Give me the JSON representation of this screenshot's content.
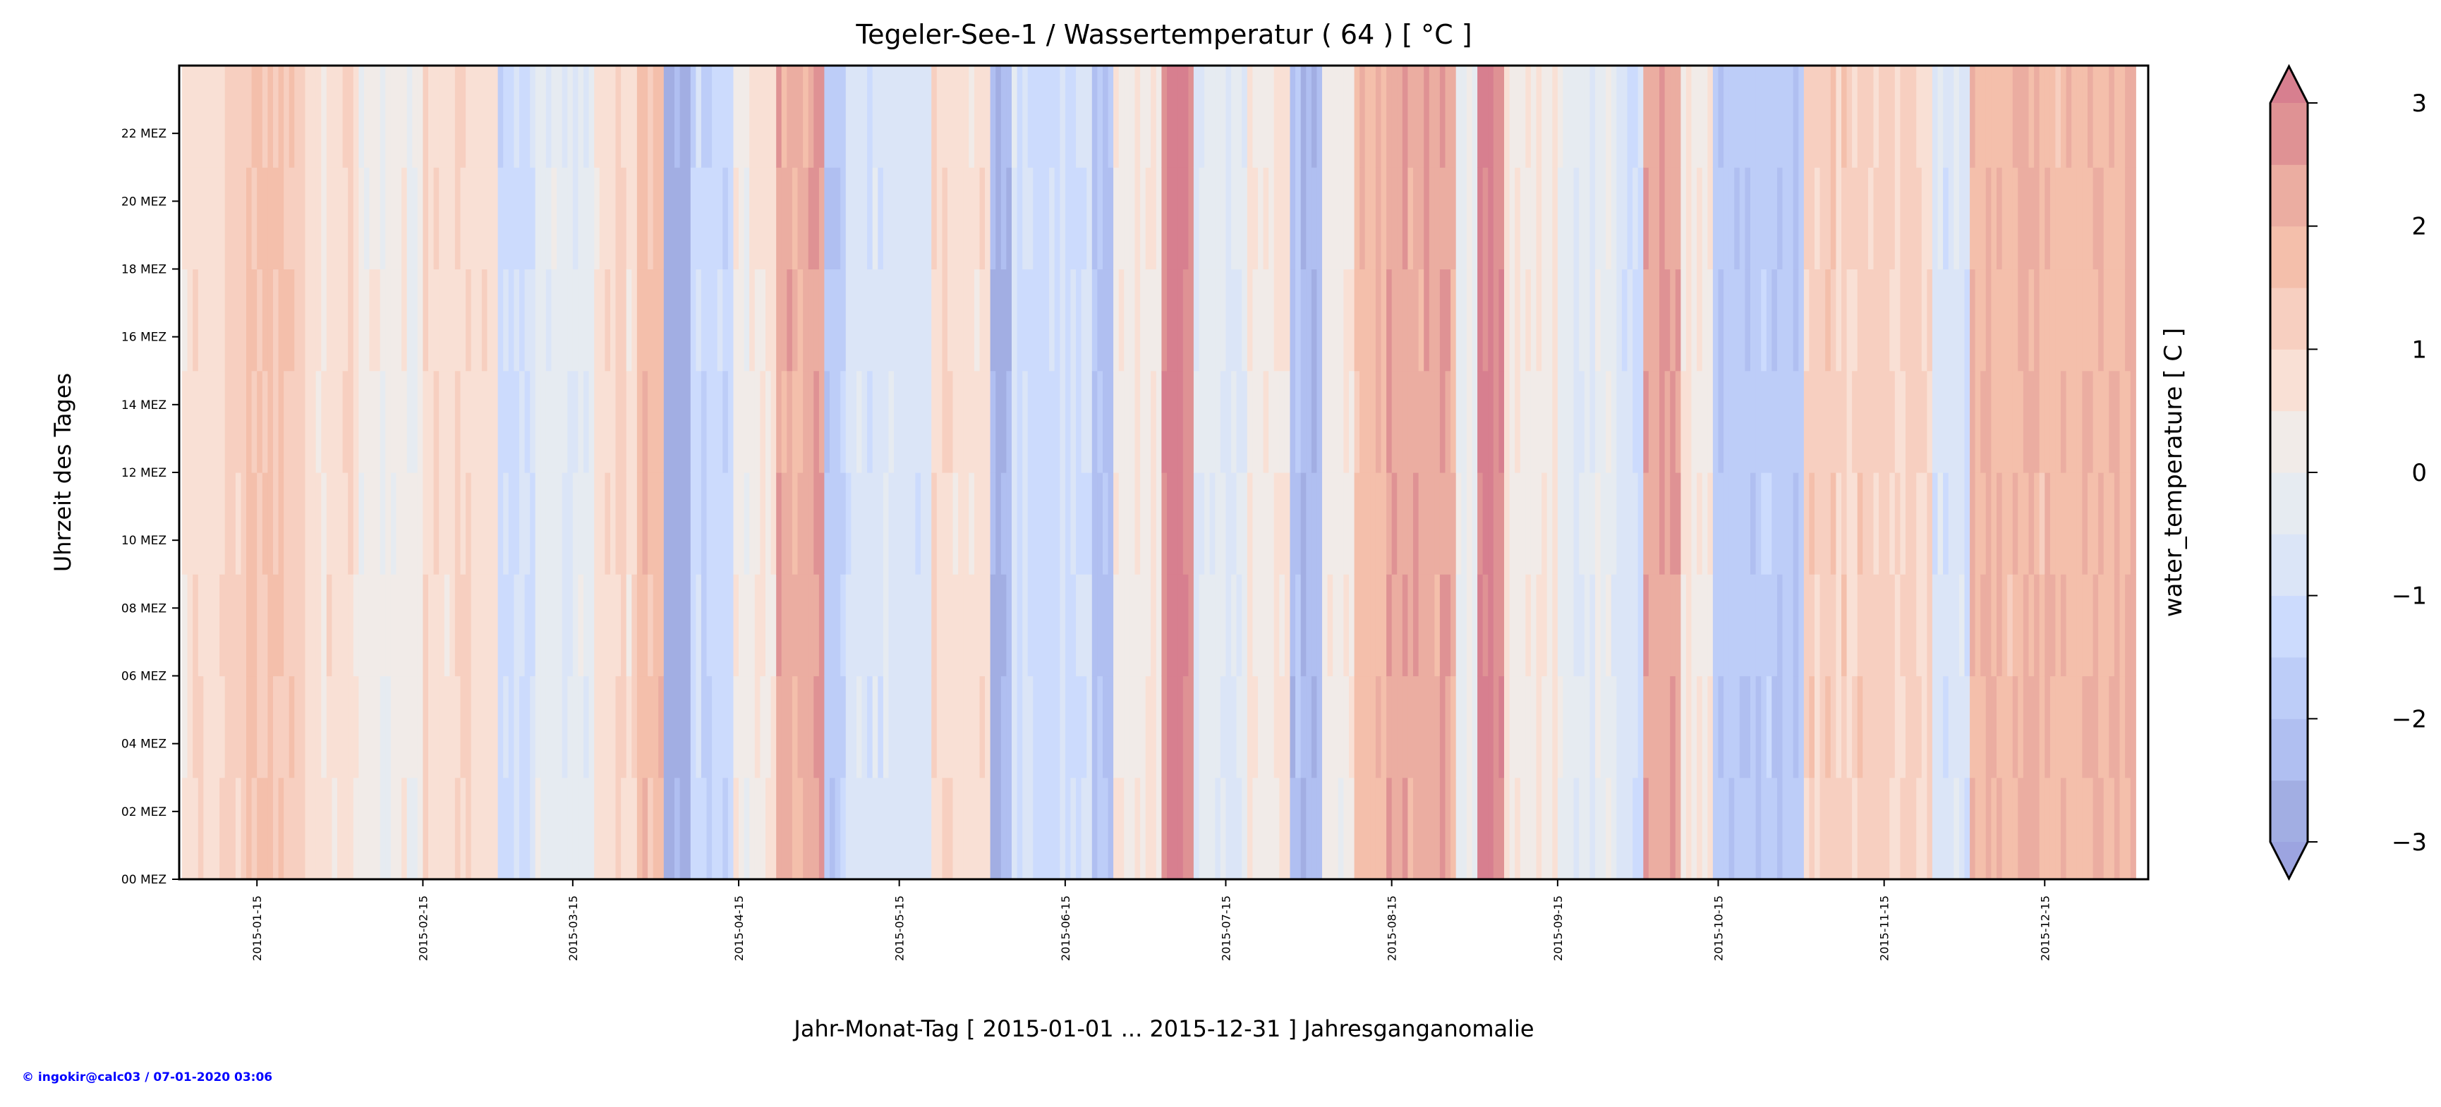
{
  "chart_data": {
    "type": "heatmap",
    "title": "Tegeler-See-1 / Wassertemperatur ( 64 ) [ °C ]",
    "xlabel": "Jahr-Monat-Tag [ 2015-01-01 ... 2015-12-31 ] Jahresganganomalie",
    "ylabel": "Uhrzeit des Tages",
    "colorbar_label": "water_temperature [ C ]",
    "x_start": "2015-01-01",
    "x_end": "2015-12-31",
    "x_tick_labels": [
      "2015-01-15",
      "2015-02-15",
      "2015-03-15",
      "2015-04-15",
      "2015-05-15",
      "2015-06-15",
      "2015-07-15",
      "2015-08-15",
      "2015-09-15",
      "2015-10-15",
      "2015-11-15",
      "2015-12-15"
    ],
    "x_tick_days": [
      14,
      45,
      73,
      104,
      134,
      165,
      195,
      226,
      257,
      287,
      318,
      348
    ],
    "y_tick_labels": [
      "00 MEZ",
      "02 MEZ",
      "04 MEZ",
      "06 MEZ",
      "08 MEZ",
      "10 MEZ",
      "12 MEZ",
      "14 MEZ",
      "16 MEZ",
      "18 MEZ",
      "20 MEZ",
      "22 MEZ"
    ],
    "y_tick_hours": [
      0,
      2,
      4,
      6,
      8,
      10,
      12,
      14,
      16,
      18,
      20,
      22
    ],
    "ylim": [
      0,
      24
    ],
    "colorbar": {
      "levels": [
        -3,
        -2.5,
        -2,
        -1.5,
        -1,
        -0.5,
        0,
        0.5,
        1,
        1.5,
        2,
        2.5,
        3
      ],
      "tick_labels": [
        "−3",
        "−2",
        "−1",
        "0",
        "1",
        "2",
        "3"
      ],
      "tick_values": [
        -3,
        -2,
        -1,
        0,
        1,
        2,
        3
      ],
      "colors": [
        "#a2aee3",
        "#b0bff1",
        "#bdcdf8",
        "#ccdbfd",
        "#dbe5f7",
        "#e6ebf1",
        "#f1ebe8",
        "#f9e0d5",
        "#f7cfc0",
        "#f4bfab",
        "#ebada1",
        "#df9294"
      ],
      "under_color": "#9ca4e0",
      "over_color": "#d77f8f",
      "extend": "both"
    },
    "daily_mean_anomaly_segments": [
      {
        "start_day": 0,
        "end_day": 7,
        "value": 0.8
      },
      {
        "start_day": 7,
        "end_day": 12,
        "value": 1.0
      },
      {
        "start_day": 12,
        "end_day": 23,
        "value": 1.5
      },
      {
        "start_day": 23,
        "end_day": 33,
        "value": 0.7
      },
      {
        "start_day": 33,
        "end_day": 45,
        "value": 0.1
      },
      {
        "start_day": 45,
        "end_day": 59,
        "value": 0.8
      },
      {
        "start_day": 59,
        "end_day": 66,
        "value": -1.2
      },
      {
        "start_day": 66,
        "end_day": 77,
        "value": -0.3
      },
      {
        "start_day": 77,
        "end_day": 85,
        "value": 0.8
      },
      {
        "start_day": 85,
        "end_day": 90,
        "value": 1.8
      },
      {
        "start_day": 90,
        "end_day": 95,
        "value": -2.8
      },
      {
        "start_day": 95,
        "end_day": 103,
        "value": -1.3
      },
      {
        "start_day": 103,
        "end_day": 111,
        "value": 0.3
      },
      {
        "start_day": 111,
        "end_day": 120,
        "value": 2.3
      },
      {
        "start_day": 120,
        "end_day": 124,
        "value": -1.6
      },
      {
        "start_day": 124,
        "end_day": 140,
        "value": -0.8
      },
      {
        "start_day": 140,
        "end_day": 151,
        "value": 0.8
      },
      {
        "start_day": 151,
        "end_day": 155,
        "value": -2.6
      },
      {
        "start_day": 155,
        "end_day": 170,
        "value": -1.0
      },
      {
        "start_day": 170,
        "end_day": 174,
        "value": -2.2
      },
      {
        "start_day": 174,
        "end_day": 183,
        "value": 0.3
      },
      {
        "start_day": 183,
        "end_day": 189,
        "value": 3.0
      },
      {
        "start_day": 189,
        "end_day": 199,
        "value": -0.5
      },
      {
        "start_day": 199,
        "end_day": 207,
        "value": 0.5
      },
      {
        "start_day": 207,
        "end_day": 213,
        "value": -2.2
      },
      {
        "start_day": 213,
        "end_day": 219,
        "value": 0.2
      },
      {
        "start_day": 219,
        "end_day": 225,
        "value": 1.8
      },
      {
        "start_day": 225,
        "end_day": 238,
        "value": 2.3
      },
      {
        "start_day": 238,
        "end_day": 242,
        "value": 0.0
      },
      {
        "start_day": 242,
        "end_day": 247,
        "value": 3.1
      },
      {
        "start_day": 247,
        "end_day": 257,
        "value": 0.5
      },
      {
        "start_day": 257,
        "end_day": 268,
        "value": -0.3
      },
      {
        "start_day": 268,
        "end_day": 273,
        "value": -1.0
      },
      {
        "start_day": 273,
        "end_day": 280,
        "value": 2.5
      },
      {
        "start_day": 280,
        "end_day": 286,
        "value": 0.5
      },
      {
        "start_day": 286,
        "end_day": 303,
        "value": -1.8
      },
      {
        "start_day": 303,
        "end_day": 327,
        "value": 1.2
      },
      {
        "start_day": 327,
        "end_day": 334,
        "value": -0.8
      },
      {
        "start_day": 334,
        "end_day": 365,
        "value": 1.9
      }
    ]
  },
  "footer": "© ingokir@calc03 / 07-01-2020 03:06"
}
